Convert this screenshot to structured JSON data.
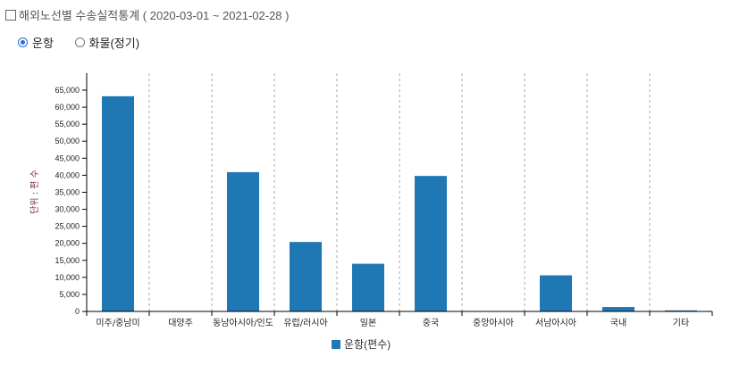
{
  "header": {
    "title": "해외노선별 수송실적통계 ( 2020-03-01 ~ 2021-02-28 )"
  },
  "radios": [
    {
      "label": "운항",
      "checked": true
    },
    {
      "label": "화물(정기)",
      "checked": false
    }
  ],
  "colors": {
    "bar": "#1f77b4",
    "accent": "#2a6fd6"
  },
  "chart_data": {
    "type": "bar",
    "categories": [
      "미주/중남미",
      "대양주",
      "동남아시아/인도",
      "유럽/러시아",
      "일본",
      "중국",
      "중앙아시아",
      "서남아시아",
      "국내",
      "기타"
    ],
    "series": [
      {
        "name": "운항(편수)",
        "values": [
          63200,
          0,
          40900,
          20400,
          14000,
          39800,
          0,
          10600,
          1300,
          300
        ]
      }
    ],
    "ylabel": "단위 : 편 수",
    "ylim": [
      0,
      65000
    ],
    "yticks": [
      0,
      5000,
      10000,
      15000,
      20000,
      25000,
      30000,
      35000,
      40000,
      45000,
      50000,
      55000,
      60000,
      65000
    ],
    "grid": "vertical dashed separators",
    "legend": "bottom-center"
  }
}
